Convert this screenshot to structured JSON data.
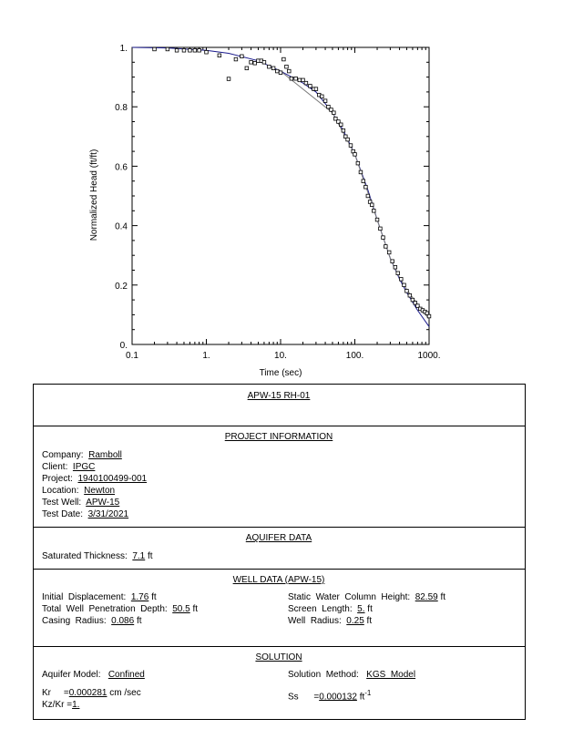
{
  "chart_data": {
    "type": "scatter",
    "xlabel": "Time  (sec)",
    "ylabel": "Normalized Head (ft/ft)",
    "x_scale": "log",
    "xlim": [
      0.1,
      1000
    ],
    "ylim": [
      0,
      1
    ],
    "x_ticks": [
      "0.1",
      "1.",
      "10.",
      "100.",
      "1000."
    ],
    "y_ticks": [
      "0.",
      "0.2",
      "0.4",
      "0.6",
      "0.8",
      "1."
    ],
    "grid": false,
    "series": [
      {
        "kind": "points",
        "color": "#000000",
        "points": [
          [
            0.2,
            0.994
          ],
          [
            0.3,
            0.994
          ],
          [
            0.4,
            0.99
          ],
          [
            0.5,
            0.99
          ],
          [
            0.6,
            0.99
          ],
          [
            0.7,
            0.99
          ],
          [
            0.8,
            0.99
          ],
          [
            1.0,
            0.984
          ],
          [
            1.5,
            0.973
          ],
          [
            2.0,
            0.894
          ],
          [
            2.5,
            0.96
          ],
          [
            3.0,
            0.97
          ],
          [
            3.5,
            0.93
          ],
          [
            4.0,
            0.95
          ],
          [
            4.5,
            0.947
          ],
          [
            5.0,
            0.955
          ],
          [
            5.5,
            0.955
          ],
          [
            6.0,
            0.95
          ],
          [
            7.0,
            0.935
          ],
          [
            8.0,
            0.93
          ],
          [
            9.0,
            0.92
          ],
          [
            10.0,
            0.915
          ],
          [
            11.0,
            0.96
          ],
          [
            12.0,
            0.935
          ],
          [
            13.0,
            0.92
          ],
          [
            14.0,
            0.895
          ],
          [
            16.0,
            0.895
          ],
          [
            18.0,
            0.89
          ],
          [
            20.0,
            0.89
          ],
          [
            22.0,
            0.88
          ],
          [
            25.0,
            0.87
          ],
          [
            28.0,
            0.86
          ],
          [
            30.0,
            0.86
          ],
          [
            33.0,
            0.84
          ],
          [
            36.0,
            0.835
          ],
          [
            40.0,
            0.82
          ],
          [
            44.0,
            0.8
          ],
          [
            48.0,
            0.79
          ],
          [
            52.0,
            0.78
          ],
          [
            55.0,
            0.76
          ],
          [
            60.0,
            0.75
          ],
          [
            65.0,
            0.74
          ],
          [
            70.0,
            0.72
          ],
          [
            75.0,
            0.7
          ],
          [
            80.0,
            0.69
          ],
          [
            88.0,
            0.67
          ],
          [
            95.0,
            0.65
          ],
          [
            100.0,
            0.64
          ],
          [
            110.0,
            0.61
          ],
          [
            120.0,
            0.58
          ],
          [
            130.0,
            0.55
          ],
          [
            140.0,
            0.53
          ],
          [
            150.0,
            0.5
          ],
          [
            160.0,
            0.48
          ],
          [
            170.0,
            0.47
          ],
          [
            180.0,
            0.45
          ],
          [
            200.0,
            0.42
          ],
          [
            220.0,
            0.39
          ],
          [
            240.0,
            0.36
          ],
          [
            260.0,
            0.33
          ],
          [
            290.0,
            0.31
          ],
          [
            320.0,
            0.28
          ],
          [
            350.0,
            0.26
          ],
          [
            380.0,
            0.24
          ],
          [
            420.0,
            0.22
          ],
          [
            460.0,
            0.2
          ],
          [
            500.0,
            0.18
          ],
          [
            550.0,
            0.165
          ],
          [
            600.0,
            0.15
          ],
          [
            650.0,
            0.14
          ],
          [
            700.0,
            0.13
          ],
          [
            760.0,
            0.12
          ],
          [
            820.0,
            0.115
          ],
          [
            880.0,
            0.11
          ],
          [
            940.0,
            0.105
          ],
          [
            1000.0,
            0.095
          ]
        ]
      },
      {
        "kind": "curve",
        "color": "#1a1a8c",
        "points": [
          [
            0.1,
            1.0
          ],
          [
            0.3,
            0.998
          ],
          [
            1.0,
            0.99
          ],
          [
            2.0,
            0.98
          ],
          [
            5.0,
            0.955
          ],
          [
            10.0,
            0.92
          ],
          [
            20.0,
            0.88
          ],
          [
            30.0,
            0.85
          ],
          [
            50.0,
            0.78
          ],
          [
            70.0,
            0.72
          ],
          [
            100.0,
            0.64
          ],
          [
            150.0,
            0.52
          ],
          [
            200.0,
            0.42
          ],
          [
            300.0,
            0.29
          ],
          [
            400.0,
            0.22
          ],
          [
            500.0,
            0.175
          ],
          [
            700.0,
            0.115
          ],
          [
            1000.0,
            0.06
          ]
        ]
      },
      {
        "kind": "curve",
        "color": "#7a7a7a",
        "points": [
          [
            10.0,
            0.92
          ],
          [
            50.0,
            0.78
          ],
          [
            100.0,
            0.64
          ],
          [
            200.0,
            0.42
          ],
          [
            300.0,
            0.29
          ],
          [
            400.0,
            0.225
          ],
          [
            500.0,
            0.185
          ],
          [
            700.0,
            0.135
          ],
          [
            1000.0,
            0.085
          ]
        ]
      }
    ]
  },
  "report": {
    "title": "APW-15  RH-01",
    "project": {
      "header": "PROJECT  INFORMATION",
      "company_label": "Company:",
      "company": "Ramboll",
      "client_label": "Client:",
      "client": "IPGC",
      "project_label": "Project:",
      "project": "1940100499-001",
      "location_label": "Location:",
      "location": "Newton",
      "well_label": "Test Well:",
      "well": "APW-15",
      "date_label": "Test Date:",
      "date": "3/31/2021"
    },
    "aquifer": {
      "header": "AQUIFER  DATA",
      "thickness_label": "Saturated Thickness:",
      "thickness": "7.1",
      "thickness_unit": "ft"
    },
    "well": {
      "header": "WELL  DATA (APW-15)",
      "init_disp_label": "Initial  Displacement:",
      "init_disp": "1.76",
      "init_disp_unit": "ft",
      "penetration_label": "Total  Well  Penetration  Depth:",
      "penetration": "50.5",
      "penetration_unit": "ft",
      "casing_label": "Casing  Radius:",
      "casing": "0.086",
      "casing_unit": "ft",
      "static_label": "Static  Water  Column  Height:",
      "static": "82.59",
      "static_unit": "ft",
      "screen_label": "Screen  Length:",
      "screen": "5.",
      "screen_unit": "ft",
      "well_radius_label": "Well  Radius:",
      "well_radius": "0.25",
      "well_radius_unit": "ft"
    },
    "solution": {
      "header": "SOLUTION",
      "model_label": "Aquifer Model:",
      "model": "Confined",
      "method_label": "Solution  Method:",
      "method": "KGS  Model",
      "kr_label": "Kr",
      "kr_eq": "=",
      "kr": "0.000281",
      "kr_unit": "cm /sec",
      "ss_label": "Ss",
      "ss_eq": "=",
      "ss": "0.000132",
      "ss_unit": "ft",
      "ss_exp": "-1",
      "kzkr_label": "Kz/Kr",
      "kzkr_eq": "=",
      "kzkr": "1."
    }
  }
}
